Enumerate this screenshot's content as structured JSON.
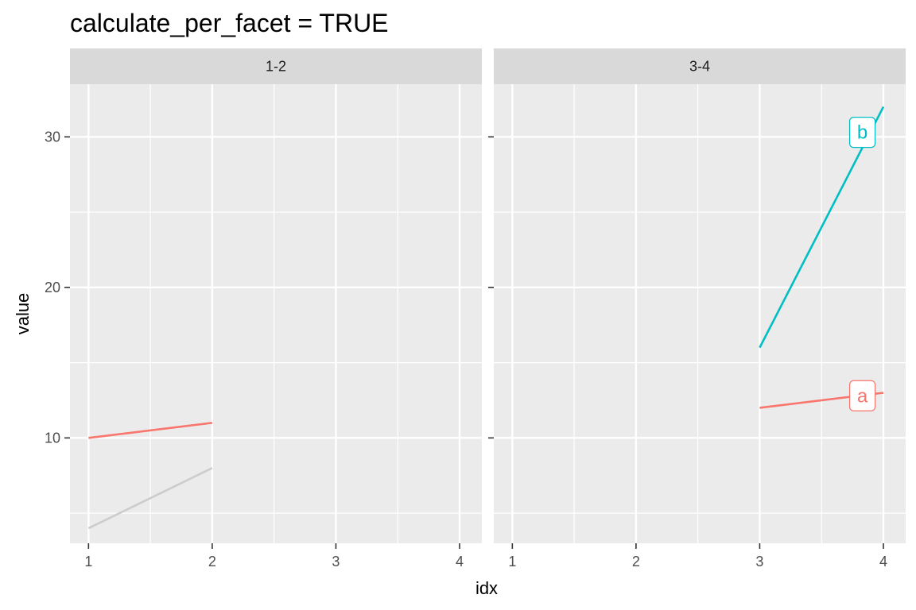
{
  "chart_data": {
    "type": "line",
    "title": "calculate_per_facet = TRUE",
    "xlabel": "idx",
    "ylabel": "value",
    "xlim": [
      0.85,
      4.18
    ],
    "ylim": [
      3.0,
      33.5
    ],
    "x_ticks": [
      1,
      2,
      3,
      4
    ],
    "y_ticks": [
      10,
      20,
      30
    ],
    "y_minor_ticks": [
      5,
      15,
      25
    ],
    "x_minor_ticks": [
      1.5,
      2.5,
      3.5
    ],
    "grid": true,
    "legend": "none",
    "colors": {
      "panel_bg": "#EBEBEB",
      "strip_bg": "#D9D9D9",
      "grid": "#FFFFFF",
      "a": "#F8766D",
      "b": "#00BFC4",
      "background_series": "#CCCCCC"
    },
    "facets": [
      {
        "strip": "1-2",
        "series": [
          {
            "color_key": "background_series",
            "x": [
              1,
              2
            ],
            "y": [
              4,
              8
            ]
          },
          {
            "color_key": "a",
            "x": [
              1,
              2
            ],
            "y": [
              10,
              11
            ]
          }
        ],
        "labels": []
      },
      {
        "strip": "3-4",
        "series": [
          {
            "color_key": "b",
            "x": [
              3,
              4
            ],
            "y": [
              16,
              32
            ]
          },
          {
            "color_key": "a",
            "x": [
              3,
              4
            ],
            "y": [
              12,
              13
            ]
          }
        ],
        "labels": [
          {
            "text": "b",
            "x": 3.83,
            "y": 30.3,
            "color_key": "b"
          },
          {
            "text": "a",
            "x": 3.83,
            "y": 12.8,
            "color_key": "a"
          }
        ]
      }
    ]
  }
}
